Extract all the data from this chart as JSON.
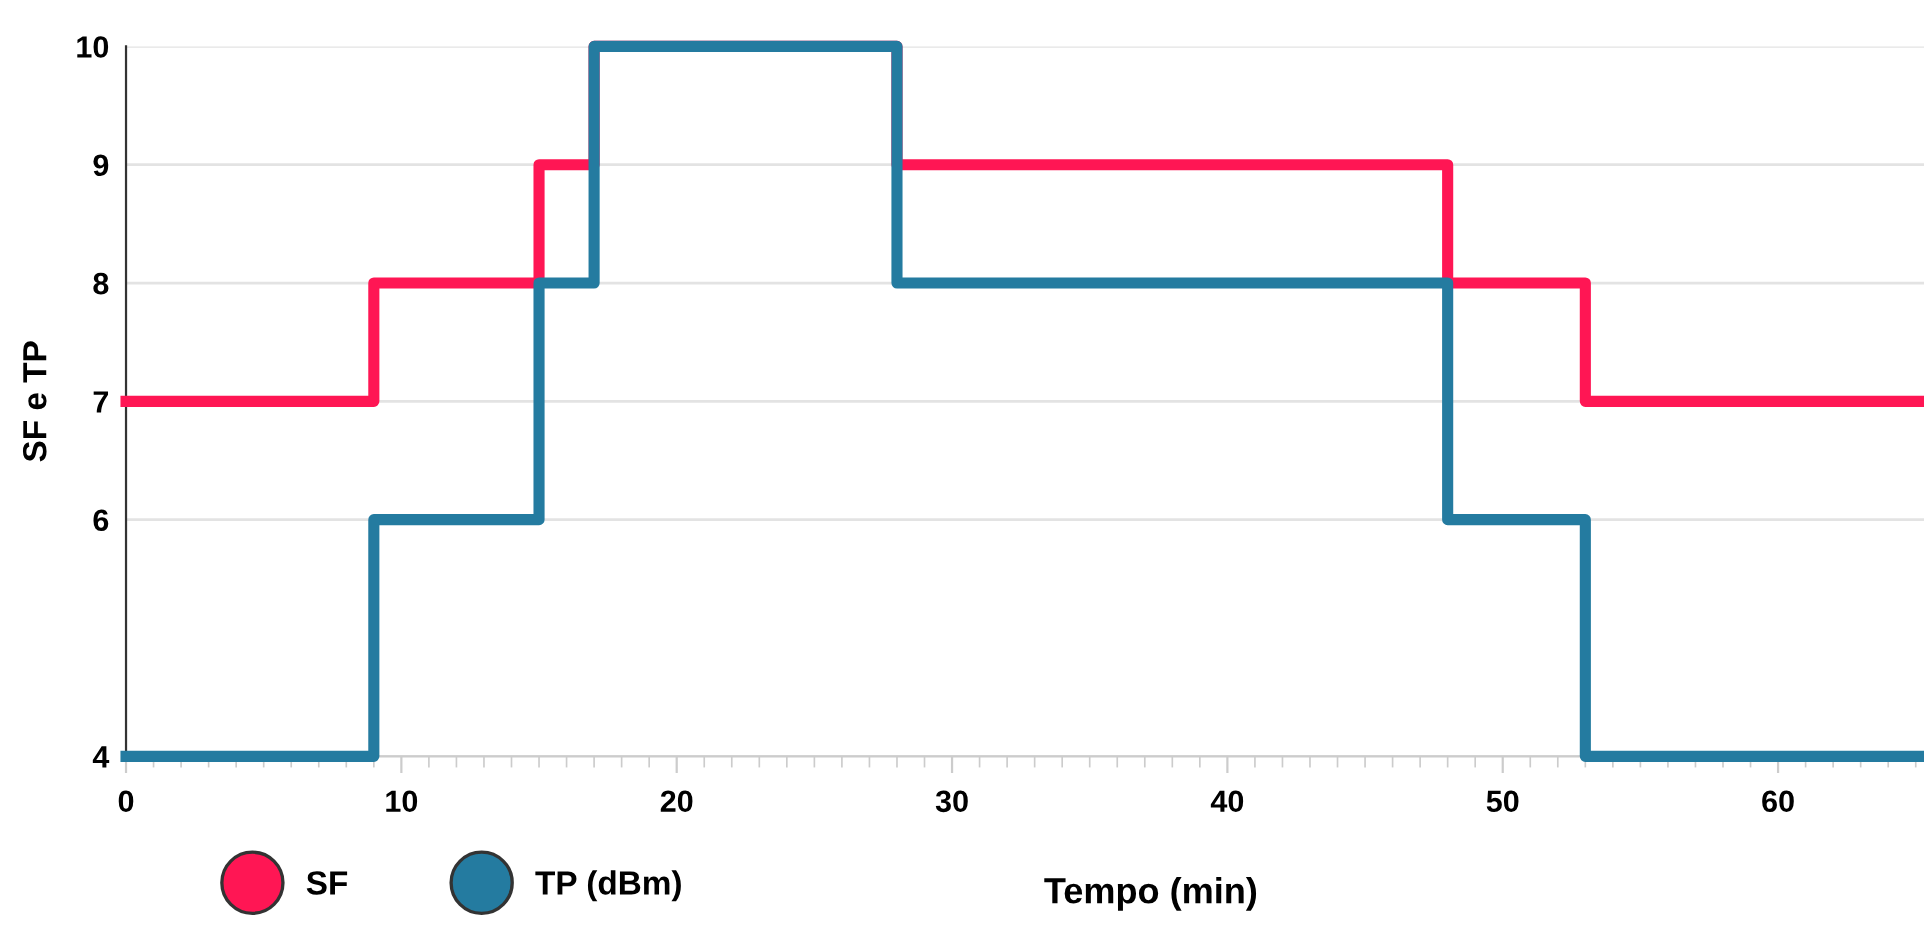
{
  "chart_data": {
    "type": "step",
    "xlabel": "Tempo (min)",
    "ylabel": "SF e TP",
    "x": [
      0,
      9,
      15,
      17,
      28,
      48,
      53,
      65.3
    ],
    "series": [
      {
        "name": "SF",
        "color": "#ff1654",
        "values": [
          7,
          8,
          9,
          10,
          9,
          8,
          7,
          7
        ]
      },
      {
        "name": "TP (dBm)",
        "color": "#247ba0",
        "values": [
          4,
          6,
          8,
          10,
          8,
          6,
          4,
          4
        ]
      }
    ],
    "xlim": [
      0,
      65.3
    ],
    "xticks": [
      0,
      10,
      20,
      30,
      40,
      50,
      60
    ],
    "ylim": [
      4,
      10
    ],
    "yticks": [
      4,
      6,
      7,
      8,
      9,
      10
    ],
    "grid": "y",
    "legend": "bottom left",
    "marker": "none",
    "line_style": "solid"
  }
}
